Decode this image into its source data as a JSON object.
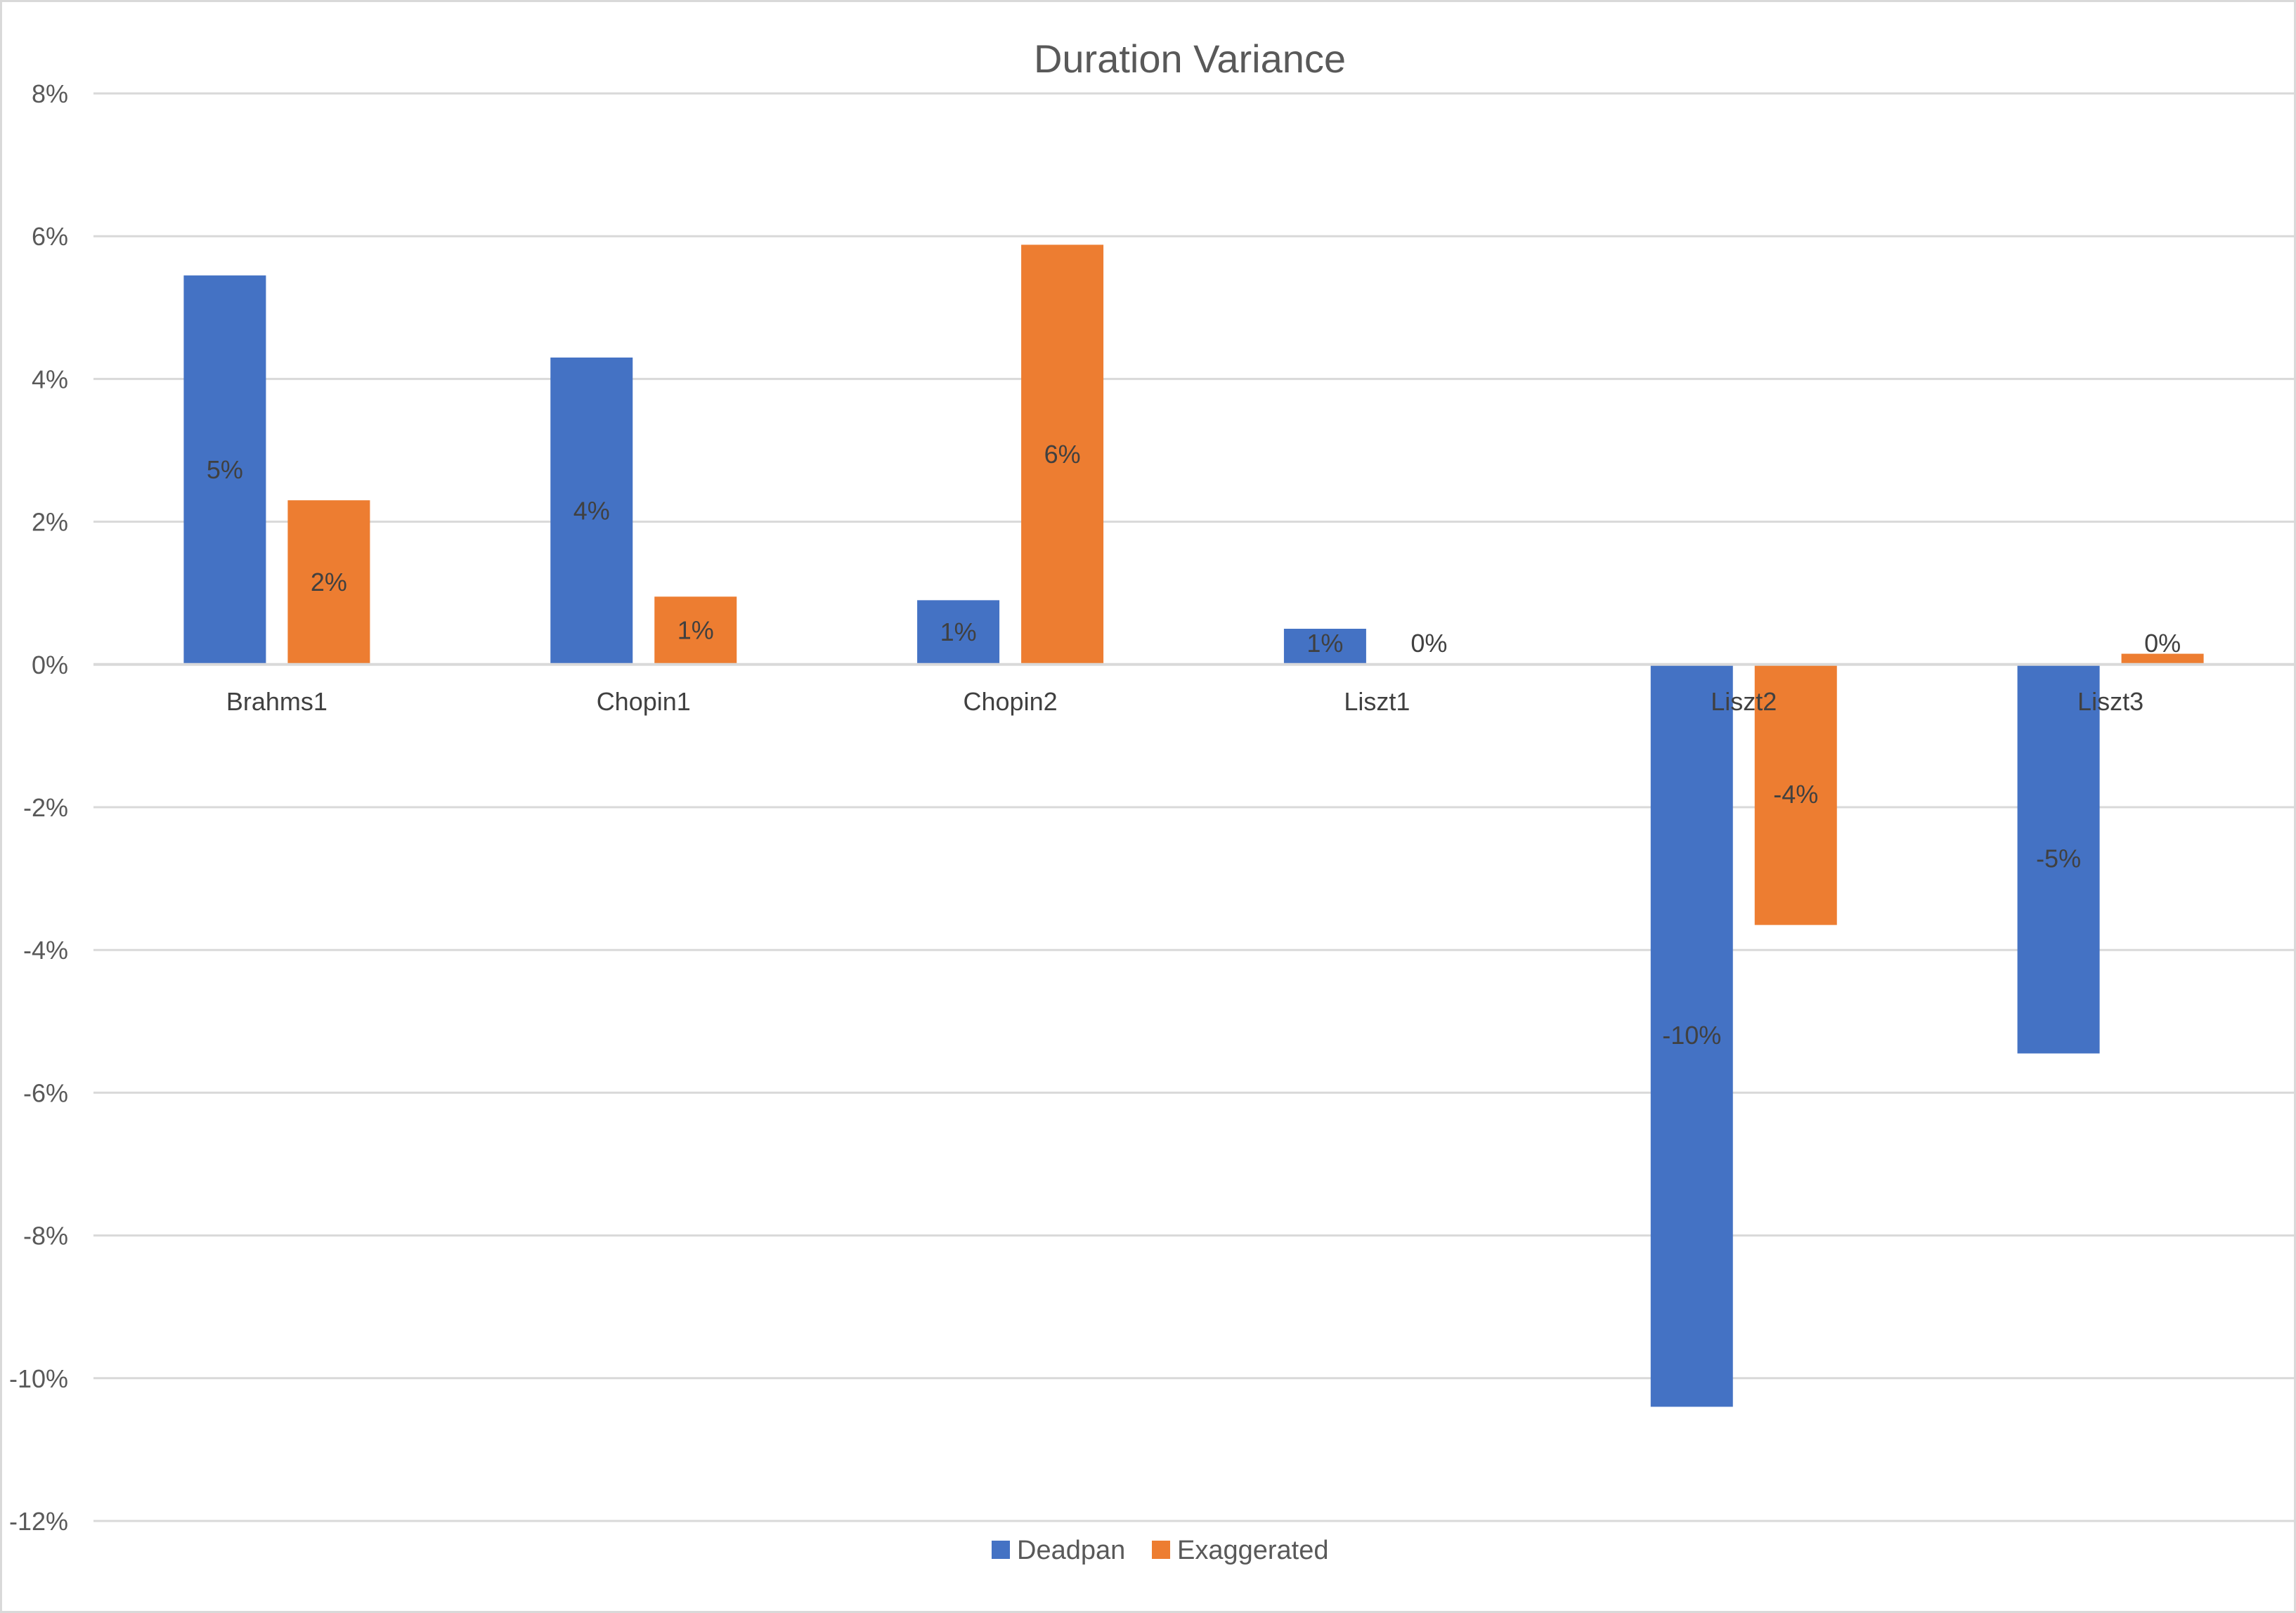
{
  "chart_data": {
    "type": "bar",
    "title": "Duration Variance",
    "categories": [
      "Brahms1",
      "Chopin1",
      "Chopin2",
      "Liszt1",
      "Liszt2",
      "Liszt3"
    ],
    "series": [
      {
        "name": "Deadpan",
        "color": "#4472C4",
        "values": [
          5.45,
          4.3,
          0.9,
          0.5,
          -10.4,
          -5.45
        ],
        "labels": [
          "5%",
          "4%",
          "1%",
          "1%",
          "-10%",
          "-5%"
        ]
      },
      {
        "name": "Exaggerated",
        "color": "#ED7D31",
        "values": [
          2.3,
          0.95,
          5.88,
          0.0,
          -3.65,
          0.15
        ],
        "labels": [
          "2%",
          "1%",
          "6%",
          "0%",
          "-4%",
          "0%"
        ]
      }
    ],
    "ylim": [
      -12,
      8
    ],
    "yticks": [
      8,
      6,
      4,
      2,
      0,
      -2,
      -4,
      -6,
      -8,
      -10,
      -12
    ],
    "ytick_labels": [
      "8%",
      "6%",
      "4%",
      "2%",
      "0%",
      "-2%",
      "-4%",
      "-6%",
      "-8%",
      "-10%",
      "-12%"
    ],
    "xlabel": "",
    "ylabel": "",
    "grid": true,
    "legend_position": "bottom"
  }
}
